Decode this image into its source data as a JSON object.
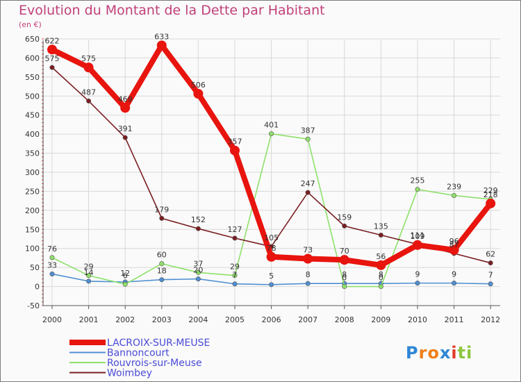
{
  "title": "Evolution du Montant de la Dette par Habitant",
  "subtitle": "(en €)",
  "logo": {
    "text": "Proxiti",
    "letters": [
      {
        "ch": "P",
        "color": "#2e86d6"
      },
      {
        "ch": "r",
        "color": "#f07f1a"
      },
      {
        "ch": "o",
        "color": "#f07f1a"
      },
      {
        "ch": "x",
        "color": "#2e86d6"
      },
      {
        "ch": "i",
        "color": "#e33b2a"
      },
      {
        "ch": "t",
        "color": "#8cc63f"
      },
      {
        "ch": "i",
        "color": "#8cc63f"
      }
    ]
  },
  "chart_data": {
    "type": "line",
    "x": [
      "2000",
      "2001",
      "2002",
      "2003",
      "2004",
      "2005",
      "2006",
      "2007",
      "2008",
      "2009",
      "2010",
      "2011",
      "2012"
    ],
    "ylim": [
      -50,
      650
    ],
    "yticks": [
      -50,
      0,
      50,
      100,
      150,
      200,
      250,
      300,
      350,
      400,
      450,
      500,
      550,
      600,
      650
    ],
    "ytick_labels": [
      "-50",
      "0",
      "50",
      "100",
      "150",
      "200",
      "250",
      "300",
      "350",
      "400",
      "450",
      "500",
      "550",
      "600",
      "650"
    ],
    "grid": true,
    "legend_position": "bottom-left",
    "series": [
      {
        "name": "LACROIX-SUR-MEUSE",
        "color": "#e8140e",
        "width": "thick",
        "values": [
          622,
          575,
          469,
          633,
          506,
          357,
          78,
          73,
          70,
          56,
          109,
          96,
          218
        ]
      },
      {
        "name": "Bannoncourt",
        "color": "#4f8fd1",
        "width": "thin",
        "values": [
          33,
          14,
          12,
          18,
          20,
          7,
          5,
          8,
          8,
          8,
          9,
          9,
          7
        ]
      },
      {
        "name": "Rouvrois-sur-Meuse",
        "color": "#8ee06a",
        "width": "thin",
        "values": [
          76,
          29,
          6,
          60,
          37,
          29,
          401,
          387,
          0,
          0,
          255,
          239,
          229
        ]
      },
      {
        "name": "Woimbey",
        "color": "#7a1e22",
        "width": "thin",
        "values": [
          575,
          487,
          391,
          179,
          152,
          127,
          105,
          247,
          159,
          135,
          111,
          87,
          62
        ]
      }
    ],
    "data_labels": [
      [
        "622",
        "575",
        "469",
        "633",
        "506",
        "357",
        "78",
        "73",
        "70",
        "56",
        "109",
        "96",
        "218"
      ],
      [
        "33",
        "14",
        "12",
        "18",
        "20",
        "7",
        "5",
        "8",
        "8",
        "8",
        "9",
        "9",
        "7"
      ],
      [
        "76",
        "29",
        "6",
        "60",
        "37",
        "29",
        "401",
        "387",
        "0",
        "0",
        "255",
        "239",
        "229"
      ],
      [
        "575",
        "487",
        "391",
        "179",
        "152",
        "127",
        "105",
        "247",
        "159",
        "135",
        "111",
        "87",
        "62"
      ]
    ]
  }
}
